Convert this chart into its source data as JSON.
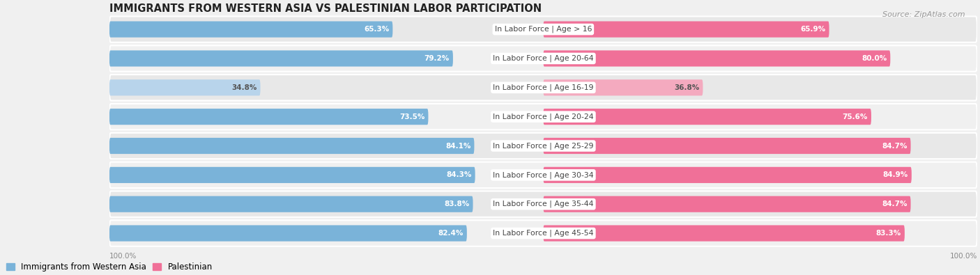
{
  "title": "IMMIGRANTS FROM WESTERN ASIA VS PALESTINIAN LABOR PARTICIPATION",
  "source": "Source: ZipAtlas.com",
  "categories": [
    "In Labor Force | Age > 16",
    "In Labor Force | Age 20-64",
    "In Labor Force | Age 16-19",
    "In Labor Force | Age 20-24",
    "In Labor Force | Age 25-29",
    "In Labor Force | Age 30-34",
    "In Labor Force | Age 35-44",
    "In Labor Force | Age 45-54"
  ],
  "western_asia_values": [
    65.3,
    79.2,
    34.8,
    73.5,
    84.1,
    84.3,
    83.8,
    82.4
  ],
  "palestinian_values": [
    65.9,
    80.0,
    36.8,
    75.6,
    84.7,
    84.9,
    84.7,
    83.3
  ],
  "western_asia_color": "#7ab3d9",
  "western_asia_color_light": "#b8d4eb",
  "palestinian_color": "#f07098",
  "palestinian_color_light": "#f4aabf",
  "background_color": "#f0f0f0",
  "row_bg_even": "#e8e8e8",
  "row_bg_odd": "#f0f0f0",
  "title_fontsize": 10.5,
  "source_fontsize": 8,
  "value_fontsize": 7.5,
  "label_fontsize": 7.8,
  "legend_fontsize": 8.5,
  "x_label": "100.0%"
}
